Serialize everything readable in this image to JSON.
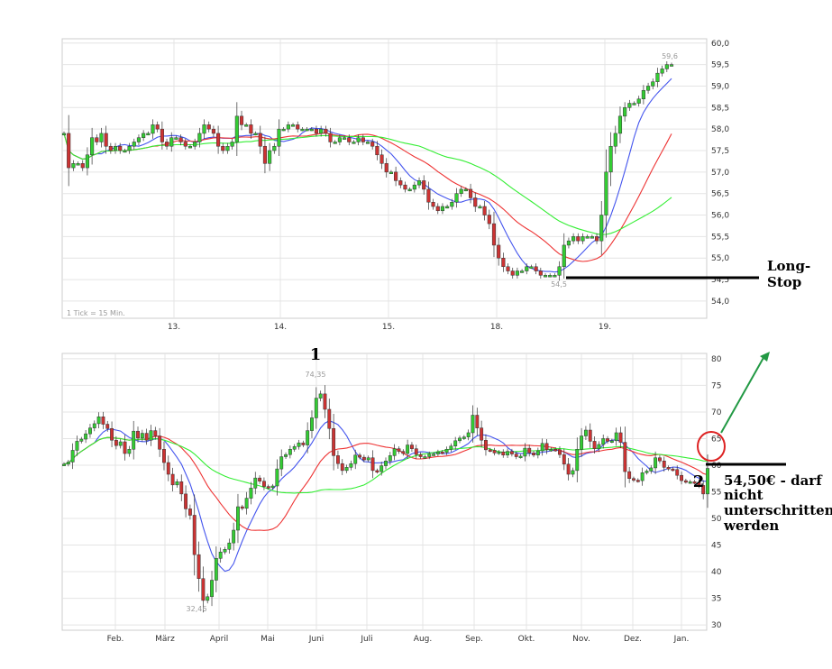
{
  "chart_data": [
    {
      "type": "candlestick",
      "title": "",
      "tick_note": "1 Tick = 15 Min.",
      "x_labels": [
        "13.",
        "14.",
        "15.",
        "18.",
        "19."
      ],
      "y_ticks": [
        "60,0",
        "59,5",
        "59,0",
        "58,5",
        "58,0",
        "57,5",
        "57,0",
        "56,5",
        "56,0",
        "55,5",
        "55,0",
        "54,5",
        "54,0"
      ],
      "ylim": [
        53.6,
        60.1
      ],
      "max_label": "59,6",
      "min_label": "54,5",
      "close": [
        57.9,
        57.1,
        57.2,
        57.2,
        57.1,
        57.4,
        57.8,
        57.7,
        57.9,
        57.6,
        57.5,
        57.6,
        57.5,
        57.5,
        57.6,
        57.7,
        57.8,
        57.9,
        57.9,
        58.1,
        58.0,
        57.7,
        57.6,
        57.8,
        57.8,
        57.7,
        57.6,
        57.6,
        57.7,
        57.9,
        58.1,
        58.0,
        57.9,
        57.6,
        57.5,
        57.6,
        57.7,
        58.3,
        58.1,
        58.1,
        57.9,
        57.9,
        57.6,
        57.2,
        57.5,
        57.6,
        58.0,
        58.0,
        58.1,
        58.1,
        58.0,
        58.0,
        58.0,
        58.0,
        57.9,
        58.0,
        57.9,
        57.7,
        57.7,
        57.8,
        57.8,
        57.7,
        57.7,
        57.8,
        57.7,
        57.7,
        57.6,
        57.4,
        57.2,
        57.0,
        57.0,
        56.8,
        56.7,
        56.6,
        56.6,
        56.7,
        56.8,
        56.6,
        56.3,
        56.2,
        56.1,
        56.2,
        56.2,
        56.3,
        56.5,
        56.6,
        56.6,
        56.4,
        56.2,
        56.2,
        56.0,
        55.8,
        55.3,
        55.0,
        54.8,
        54.7,
        54.6,
        54.7,
        54.7,
        54.8,
        54.8,
        54.7,
        54.6,
        54.6,
        54.6,
        54.6,
        54.8,
        55.3,
        55.4,
        55.5,
        55.4,
        55.5,
        55.5,
        55.5,
        55.4,
        56.0,
        57.0,
        57.6,
        57.9,
        58.3,
        58.5,
        58.6,
        58.6,
        58.7,
        58.9,
        59.0,
        59.1,
        59.3,
        59.4,
        59.5,
        59.5
      ]
    },
    {
      "type": "candlestick",
      "title": "",
      "x_labels": [
        "Feb.",
        "März",
        "April",
        "Mai",
        "Juni",
        "Juli",
        "Aug.",
        "Sep.",
        "Okt.",
        "Nov.",
        "Dez.",
        "Jan."
      ],
      "y_ticks": [
        "80",
        "75",
        "70",
        "65",
        "60",
        "55",
        "50",
        "45",
        "40",
        "35",
        "30"
      ],
      "ylim": [
        29,
        81
      ],
      "max_label": "74,35",
      "min_label": "32,46",
      "close": [
        60.2,
        60.6,
        62.8,
        64.5,
        64.9,
        65.9,
        67.0,
        67.8,
        69.1,
        67.7,
        66.9,
        64.7,
        63.7,
        64.4,
        62.2,
        63.0,
        66.4,
        65.1,
        66.0,
        64.7,
        66.5,
        65.5,
        63.0,
        60.5,
        58.3,
        56.3,
        56.9,
        54.6,
        51.8,
        50.6,
        43.2,
        38.7,
        34.6,
        35.3,
        38.4,
        42.5,
        43.7,
        44.2,
        45.4,
        47.8,
        52.2,
        51.9,
        53.8,
        55.7,
        57.6,
        57.0,
        56.0,
        55.8,
        56.1,
        59.3,
        61.6,
        62.0,
        63.0,
        63.5,
        64.2,
        63.8,
        66.5,
        68.9,
        72.6,
        73.4,
        70.5,
        66.9,
        61.8,
        60.3,
        59.0,
        59.6,
        60.3,
        61.9,
        61.5,
        61.0,
        61.4,
        59.0,
        58.8,
        59.9,
        60.8,
        61.8,
        63.1,
        62.6,
        62.2,
        63.8,
        63.1,
        62.0,
        61.6,
        61.6,
        62.1,
        62.1,
        62.5,
        62.4,
        63.0,
        63.6,
        64.6,
        65.1,
        65.3,
        66.1,
        69.4,
        67.0,
        64.7,
        62.9,
        62.8,
        62.3,
        62.5,
        61.9,
        62.6,
        62.1,
        61.6,
        61.7,
        63.2,
        62.3,
        61.9,
        62.7,
        64.1,
        62.9,
        63.0,
        62.9,
        62.0,
        60.2,
        58.3,
        59.0,
        63.0,
        65.5,
        66.6,
        64.5,
        63.1,
        63.9,
        65.0,
        64.5,
        64.6,
        66.1,
        64.3,
        58.8,
        57.5,
        57.2,
        57.1,
        58.6,
        58.9,
        59.5,
        61.4,
        60.8,
        59.6,
        59.3,
        59.2,
        58.1,
        57.1,
        56.9,
        56.9,
        56.8,
        56.2,
        54.6,
        59.4
      ]
    }
  ],
  "annotations": {
    "long_stop": "Long-Stop",
    "support_label": "54,50€ - darf nicht unterschritten werden",
    "marker_1": "1",
    "marker_2": "2"
  },
  "colors": {
    "up_candle": "#33cc33",
    "down_candle": "#cc3333",
    "ma_short": "#4455ee",
    "ma_mid": "#ee3333",
    "ma_long": "#33ee33",
    "arrow": "#229944",
    "circle": "#dd2222"
  }
}
